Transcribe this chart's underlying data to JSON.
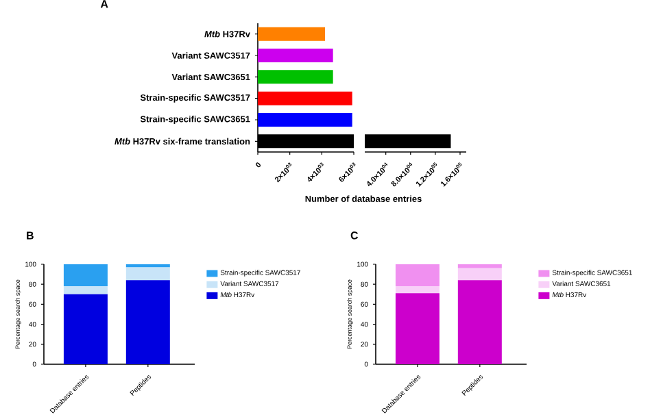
{
  "chart_data": [
    {
      "type": "bar",
      "title": "A",
      "orientation": "horizontal",
      "xlabel": "Number of database entries",
      "categories": [
        "*Mtb* H37Rv",
        "Variant SAWC3517",
        "Variant SAWC3651",
        "Strain-specific SAWC3517",
        "Strain-specific SAWC3651",
        "*Mtb* H37Rv six-frame translation"
      ],
      "values": [
        4200,
        4700,
        4700,
        5900,
        5900,
        6000
      ],
      "colors": [
        "#ff8000",
        "#cc00ee",
        "#00c000",
        "#ff0000",
        "#0000ff",
        "#000000"
      ],
      "xlim": [
        0,
        6000
      ],
      "xticks": [
        0,
        {
          "value": 2000,
          "label": "2×10$^{03}$"
        },
        {
          "value": 4000,
          "label": "4×10$^{03}$"
        },
        {
          "value": 6000,
          "label": "6×10$^{03}$"
        }
      ]
    },
    {
      "type": "bar",
      "orientation": "horizontal",
      "tick_labels": "x",
      "categories": [
        null,
        null,
        null,
        null,
        null,
        null
      ],
      "values": [
        null,
        null,
        null,
        null,
        null,
        145000
      ],
      "colors": [
        "#ff8000",
        "#cc00ee",
        "#00c000",
        "#ff0000",
        "#0000ff",
        "#000000"
      ],
      "xlim": [
        6000,
        170000
      ],
      "xticks": [
        {
          "value": 40000,
          "label": "4.0×10$^{04}$"
        },
        {
          "value": 80000,
          "label": "8.0×10$^{04}$"
        },
        {
          "value": 120000,
          "label": "1.2×10$^{05}$"
        },
        {
          "value": 160000,
          "label": "1.6×10$^{05}$"
        }
      ]
    },
    {
      "type": "bar",
      "title": "B",
      "stacked": true,
      "ylabel": "Percentage search space",
      "legend": "right",
      "categories": [
        "Database entries",
        "Peptides"
      ],
      "series": [
        {
          "name": "*Mtb* H37Rv",
          "color": "#0000e0",
          "values": [
            70,
            84
          ]
        },
        {
          "name": "Variant SAWC3517",
          "color": "#c8e4f8",
          "values": [
            8,
            13
          ]
        },
        {
          "name": "Strain-specific SAWC3517",
          "color": "#2aa0f0",
          "values": [
            22,
            3
          ]
        }
      ],
      "ylim": [
        0,
        100
      ],
      "yticks": [
        0,
        20,
        40,
        60,
        80,
        100
      ]
    },
    {
      "type": "bar",
      "title": "C",
      "stacked": true,
      "ylabel": "Percentage search space",
      "legend": "right",
      "categories": [
        "Database entries",
        "Peptides"
      ],
      "series": [
        {
          "name": "*Mtb* H37Rv",
          "color": "#cc00cc",
          "values": [
            71,
            84
          ]
        },
        {
          "name": "Variant SAWC3651",
          "color": "#f8d0f8",
          "values": [
            7,
            12
          ]
        },
        {
          "name": "Strain-specific SAWC3651",
          "color": "#f090f0",
          "values": [
            22,
            4
          ]
        }
      ],
      "ylim": [
        0,
        100
      ],
      "yticks": [
        0,
        20,
        40,
        60,
        80,
        100
      ]
    }
  ]
}
